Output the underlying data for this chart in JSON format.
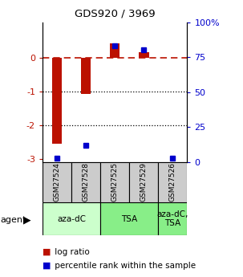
{
  "title": "GDS920 / 3969",
  "samples": [
    "GSM27524",
    "GSM27528",
    "GSM27525",
    "GSM27529",
    "GSM27526"
  ],
  "log_ratios": [
    -2.55,
    -1.08,
    0.42,
    0.15,
    0.0
  ],
  "percentile_ranks": [
    3.0,
    12.0,
    83.0,
    80.0,
    3.0
  ],
  "bar_color": "#bb1100",
  "dot_color": "#0000cc",
  "ylim_left": [
    -3.1,
    1.05
  ],
  "ylim_right": [
    0,
    100
  ],
  "yticks_left": [
    0,
    -1,
    -2,
    -3
  ],
  "yticks_right": [
    100,
    75,
    50,
    25,
    0
  ],
  "ytick_right_labels": [
    "100%",
    "75",
    "50",
    "25",
    "0"
  ],
  "dotted_lines": [
    -1,
    -2
  ],
  "groups": [
    {
      "label": "aza-dC",
      "start": 0,
      "end": 2,
      "color": "#ccffcc"
    },
    {
      "label": "TSA",
      "start": 2,
      "end": 4,
      "color": "#88ee88"
    },
    {
      "label": "aza-dC,\nTSA",
      "start": 4,
      "end": 5,
      "color": "#88ee88"
    }
  ],
  "legend_items": [
    {
      "color": "#bb1100",
      "label": " log ratio"
    },
    {
      "color": "#0000cc",
      "label": " percentile rank within the sample"
    }
  ],
  "bar_width": 0.35
}
